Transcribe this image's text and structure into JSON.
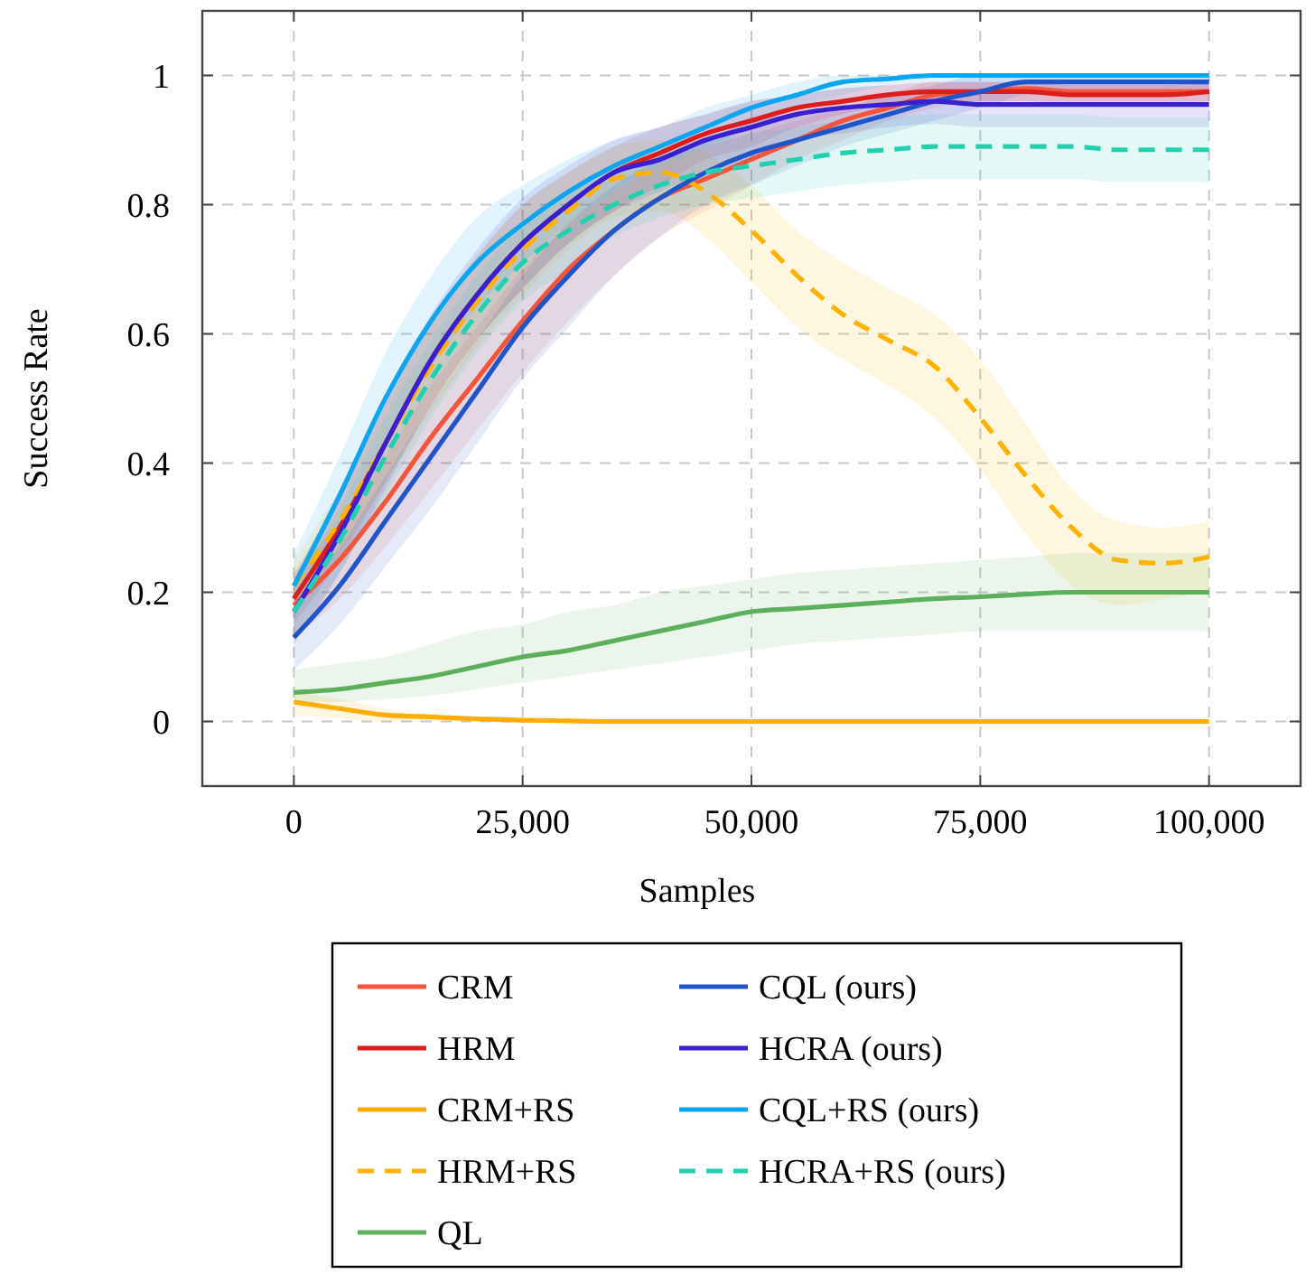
{
  "chart_data": {
    "type": "line",
    "xlabel": "Samples",
    "ylabel": "Success Rate",
    "xlim": [
      -10000,
      110000
    ],
    "ylim": [
      -0.1,
      1.1
    ],
    "xticks": [
      0,
      {
        "value": 25000,
        "label": "25,000"
      },
      {
        "value": 50000,
        "label": "50,000"
      },
      {
        "value": 75000,
        "label": "75,000"
      },
      {
        "value": 100000,
        "label": "100,000"
      }
    ],
    "yticks": [
      0,
      0.2,
      0.4,
      0.6,
      0.8,
      1
    ],
    "grid": true,
    "legend": "bottom",
    "line_style": "solid",
    "marker": "none",
    "x": [
      0,
      5000,
      10000,
      15000,
      20000,
      25000,
      30000,
      35000,
      40000,
      45000,
      50000,
      55000,
      60000,
      65000,
      70000,
      75000,
      80000,
      85000,
      90000,
      95000,
      100000
    ],
    "series": [
      {
        "name": "CRM",
        "color": "#f4553a",
        "values": [
          0.18,
          0.25,
          0.34,
          0.44,
          0.53,
          0.62,
          0.7,
          0.76,
          0.81,
          0.84,
          0.87,
          0.9,
          0.93,
          0.95,
          0.97,
          0.975,
          0.98,
          0.975,
          0.975,
          0.975,
          0.975
        ],
        "lower": [
          0.13,
          0.19,
          0.27,
          0.36,
          0.45,
          0.54,
          0.62,
          0.69,
          0.75,
          0.79,
          0.83,
          0.87,
          0.9,
          0.93,
          0.95,
          0.96,
          0.96,
          0.96,
          0.96,
          0.96,
          0.96
        ],
        "upper": [
          0.23,
          0.31,
          0.41,
          0.52,
          0.61,
          0.7,
          0.77,
          0.82,
          0.86,
          0.89,
          0.91,
          0.93,
          0.95,
          0.97,
          0.99,
          0.99,
          0.99,
          0.99,
          0.99,
          0.99,
          0.99
        ]
      },
      {
        "name": "HRM",
        "color": "#dd1c1c",
        "values": [
          0.19,
          0.3,
          0.43,
          0.56,
          0.66,
          0.74,
          0.8,
          0.85,
          0.88,
          0.91,
          0.93,
          0.95,
          0.96,
          0.97,
          0.975,
          0.975,
          0.975,
          0.97,
          0.97,
          0.97,
          0.975
        ],
        "lower": [
          0.15,
          0.25,
          0.37,
          0.49,
          0.59,
          0.67,
          0.74,
          0.79,
          0.83,
          0.87,
          0.89,
          0.92,
          0.94,
          0.955,
          0.96,
          0.96,
          0.96,
          0.955,
          0.955,
          0.955,
          0.96
        ],
        "upper": [
          0.23,
          0.35,
          0.49,
          0.62,
          0.72,
          0.8,
          0.85,
          0.89,
          0.92,
          0.94,
          0.96,
          0.97,
          0.98,
          0.985,
          0.99,
          0.99,
          0.99,
          0.985,
          0.985,
          0.985,
          0.99
        ]
      },
      {
        "name": "CRM+RS",
        "color": "#ffad00",
        "values": [
          0.03,
          0.02,
          0.01,
          0.007,
          0.004,
          0.002,
          0.001,
          0,
          0,
          0,
          0,
          0,
          0,
          0,
          0,
          0,
          0,
          0,
          0,
          0,
          0
        ],
        "lower": [
          0.01,
          0.005,
          0,
          0,
          0,
          0,
          0,
          0,
          0,
          0,
          0,
          0,
          0,
          0,
          0,
          0,
          0,
          0,
          0,
          0,
          0
        ],
        "upper": [
          0.045,
          0.035,
          0.02,
          0.012,
          0.007,
          0.004,
          0.002,
          0,
          0,
          0,
          0,
          0,
          0,
          0,
          0,
          0,
          0,
          0,
          0,
          0,
          0
        ]
      },
      {
        "name": "HRM+RS",
        "color": "#ffb300",
        "line_style": "dashed",
        "values": [
          0.21,
          0.31,
          0.43,
          0.55,
          0.65,
          0.73,
          0.79,
          0.84,
          0.85,
          0.82,
          0.76,
          0.69,
          0.63,
          0.59,
          0.55,
          0.47,
          0.38,
          0.3,
          0.25,
          0.245,
          0.255
        ],
        "lower": [
          0.17,
          0.26,
          0.37,
          0.48,
          0.58,
          0.66,
          0.73,
          0.78,
          0.79,
          0.75,
          0.68,
          0.61,
          0.56,
          0.52,
          0.47,
          0.39,
          0.29,
          0.21,
          0.18,
          0.19,
          0.2
        ],
        "upper": [
          0.25,
          0.36,
          0.49,
          0.62,
          0.72,
          0.8,
          0.85,
          0.89,
          0.9,
          0.88,
          0.83,
          0.76,
          0.71,
          0.67,
          0.63,
          0.56,
          0.46,
          0.36,
          0.31,
          0.3,
          0.31
        ]
      },
      {
        "name": "QL",
        "color": "#5cb05c",
        "values": [
          0.045,
          0.05,
          0.06,
          0.07,
          0.085,
          0.1,
          0.11,
          0.125,
          0.14,
          0.155,
          0.17,
          0.175,
          0.18,
          0.185,
          0.19,
          0.193,
          0.197,
          0.2,
          0.2,
          0.2,
          0.2
        ],
        "lower": [
          0.03,
          0.03,
          0.035,
          0.04,
          0.05,
          0.06,
          0.07,
          0.08,
          0.09,
          0.1,
          0.11,
          0.12,
          0.125,
          0.13,
          0.135,
          0.14,
          0.14,
          0.14,
          0.14,
          0.14,
          0.14
        ],
        "upper": [
          0.08,
          0.09,
          0.1,
          0.12,
          0.14,
          0.15,
          0.17,
          0.18,
          0.2,
          0.21,
          0.22,
          0.23,
          0.235,
          0.24,
          0.245,
          0.25,
          0.255,
          0.26,
          0.26,
          0.26,
          0.26
        ]
      },
      {
        "name": "CQL (ours)",
        "color": "#1f55c8",
        "values": [
          0.13,
          0.21,
          0.31,
          0.41,
          0.51,
          0.61,
          0.69,
          0.76,
          0.81,
          0.85,
          0.88,
          0.9,
          0.92,
          0.94,
          0.96,
          0.975,
          0.99,
          0.99,
          0.99,
          0.99,
          0.99
        ],
        "lower": [
          0.08,
          0.15,
          0.24,
          0.33,
          0.43,
          0.53,
          0.61,
          0.69,
          0.75,
          0.8,
          0.83,
          0.86,
          0.89,
          0.91,
          0.93,
          0.95,
          0.97,
          0.975,
          0.975,
          0.975,
          0.975
        ],
        "upper": [
          0.18,
          0.27,
          0.38,
          0.49,
          0.59,
          0.69,
          0.77,
          0.83,
          0.87,
          0.9,
          0.93,
          0.94,
          0.95,
          0.97,
          0.985,
          1,
          1,
          1,
          1,
          1,
          1
        ]
      },
      {
        "name": "HCRA (ours)",
        "color": "#3a1fd0",
        "values": [
          0.17,
          0.29,
          0.43,
          0.56,
          0.66,
          0.74,
          0.8,
          0.85,
          0.87,
          0.9,
          0.92,
          0.94,
          0.95,
          0.955,
          0.96,
          0.955,
          0.955,
          0.955,
          0.955,
          0.955,
          0.955
        ],
        "lower": [
          0.12,
          0.23,
          0.36,
          0.49,
          0.59,
          0.67,
          0.74,
          0.79,
          0.82,
          0.85,
          0.87,
          0.9,
          0.91,
          0.92,
          0.925,
          0.92,
          0.92,
          0.92,
          0.92,
          0.92,
          0.92
        ],
        "upper": [
          0.22,
          0.35,
          0.5,
          0.63,
          0.73,
          0.81,
          0.86,
          0.9,
          0.92,
          0.94,
          0.96,
          0.97,
          0.98,
          0.985,
          0.99,
          0.99,
          0.99,
          0.99,
          0.99,
          0.99,
          0.99
        ]
      },
      {
        "name": "CQL+RS (ours)",
        "color": "#0ca6f0",
        "values": [
          0.21,
          0.35,
          0.5,
          0.62,
          0.71,
          0.77,
          0.82,
          0.86,
          0.89,
          0.92,
          0.95,
          0.97,
          0.99,
          0.995,
          1,
          1,
          1,
          1,
          1,
          1,
          1
        ],
        "lower": [
          0.16,
          0.29,
          0.43,
          0.55,
          0.64,
          0.71,
          0.77,
          0.82,
          0.86,
          0.89,
          0.92,
          0.95,
          0.97,
          0.985,
          0.99,
          0.99,
          0.99,
          0.99,
          0.99,
          0.99,
          0.99
        ],
        "upper": [
          0.26,
          0.41,
          0.57,
          0.69,
          0.78,
          0.83,
          0.87,
          0.9,
          0.92,
          0.95,
          0.97,
          0.99,
          1,
          1,
          1,
          1,
          1,
          1,
          1,
          1,
          1
        ]
      },
      {
        "name": "HCRA+RS (ours)",
        "color": "#20d0b0",
        "line_style": "dashed",
        "values": [
          0.17,
          0.28,
          0.41,
          0.53,
          0.63,
          0.71,
          0.76,
          0.8,
          0.83,
          0.85,
          0.86,
          0.87,
          0.88,
          0.885,
          0.89,
          0.89,
          0.89,
          0.89,
          0.885,
          0.885,
          0.885
        ],
        "lower": [
          0.13,
          0.23,
          0.35,
          0.47,
          0.57,
          0.65,
          0.7,
          0.75,
          0.78,
          0.8,
          0.81,
          0.82,
          0.83,
          0.835,
          0.84,
          0.84,
          0.84,
          0.84,
          0.835,
          0.835,
          0.835
        ],
        "upper": [
          0.21,
          0.33,
          0.47,
          0.59,
          0.69,
          0.77,
          0.82,
          0.85,
          0.88,
          0.9,
          0.91,
          0.92,
          0.93,
          0.935,
          0.94,
          0.94,
          0.94,
          0.94,
          0.935,
          0.935,
          0.935
        ]
      }
    ]
  }
}
